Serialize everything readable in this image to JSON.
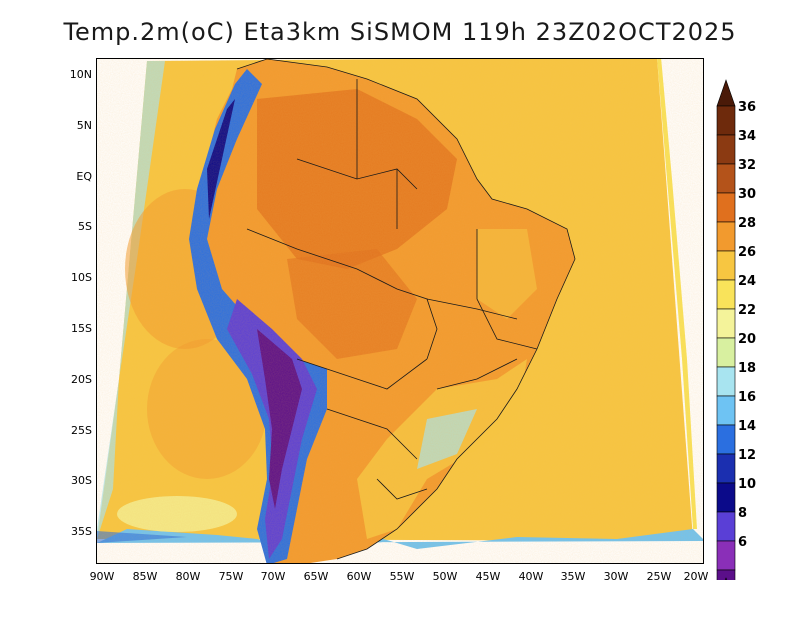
{
  "title": "Temp.2m(oC) Eta3km SiSMOM 119h 23Z02OCT2025",
  "latitude_labels": [
    "10N",
    "5N",
    "EQ",
    "5S",
    "10S",
    "15S",
    "20S",
    "25S",
    "30S",
    "35S"
  ],
  "longitude_labels": [
    "90W",
    "85W",
    "80W",
    "75W",
    "70W",
    "65W",
    "60W",
    "55W",
    "50W",
    "45W",
    "40W",
    "35W",
    "30W",
    "25W",
    "20W"
  ],
  "colorbar": {
    "labels": [
      "36",
      "34",
      "32",
      "30",
      "28",
      "26",
      "24",
      "22",
      "20",
      "18",
      "16",
      "14",
      "12",
      "10",
      "8",
      "6"
    ],
    "colors": [
      "#6e2a0c",
      "#8b3a12",
      "#b4531a",
      "#e0701e",
      "#f29a2e",
      "#f7c641",
      "#f9e35a",
      "#f4f39a",
      "#d8f0a0",
      "#a8e4f0",
      "#6ec3f3",
      "#2b6fe0",
      "#1b2fb0",
      "#0b0a8a",
      "#5a3fd6",
      "#8a2fb8",
      "#5b0f8a"
    ],
    "top_color": "#4a1a08",
    "bottom_color": "#3a0a5a"
  }
}
